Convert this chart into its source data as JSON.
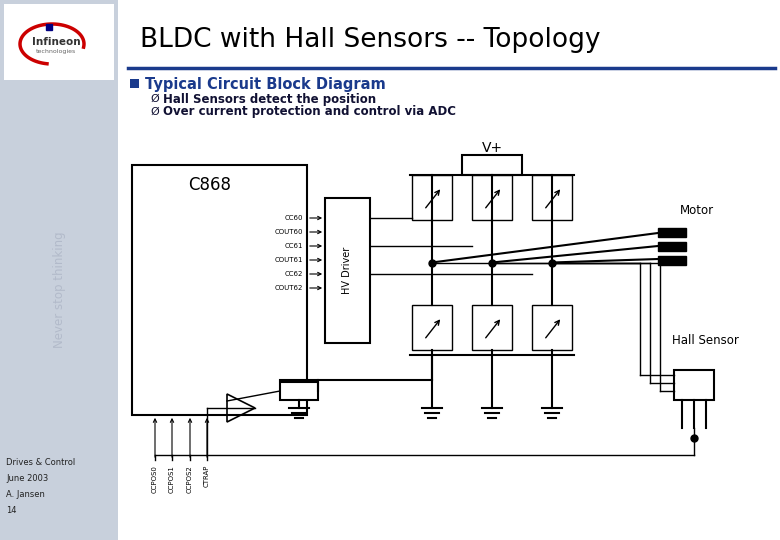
{
  "title": "BLDC with Hall Sensors -- Topology",
  "slide_bg": "#ffffff",
  "left_panel_color": "#c8d0dc",
  "header_line_color": "#1a3a8c",
  "bullet_color": "#1a3a8c",
  "bullet_text": "Typical Circuit Block Diagram",
  "sub_bullets": [
    "Hall Sensors detect the position",
    "Over current protection and control via ADC"
  ],
  "footer_lines": [
    "Drives & Control",
    "June 2003",
    "A. Jansen",
    "14"
  ],
  "vplus_label": "V+",
  "motor_label": "Motor",
  "hall_sensor_label": "Hall Sensor",
  "c868_label": "C868",
  "hv_driver_label": "HV Driver",
  "cc_labels": [
    "CC60",
    "COUT60",
    "CC61",
    "COUT61",
    "CC62",
    "COUT62"
  ],
  "bottom_labels": [
    "CCPOS0",
    "CCPOS1",
    "CCPOS2",
    "CTRAP"
  ]
}
